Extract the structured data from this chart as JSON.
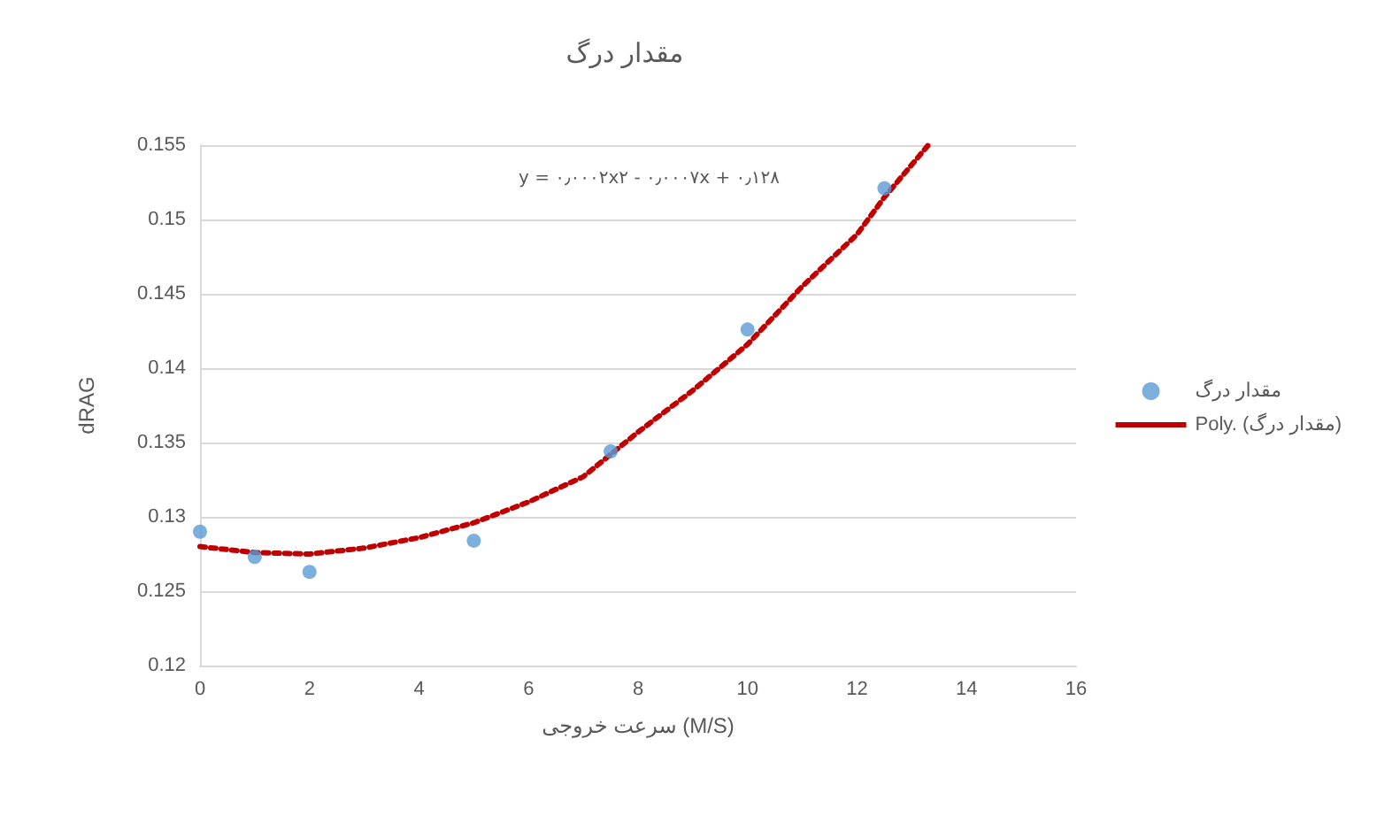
{
  "chart_data": {
    "type": "scatter",
    "title": "مقدار درگ",
    "xlabel": "سرعت خروجی (M/S)",
    "ylabel": "dRAG",
    "annotations": [
      "y = ۰٫۰۰۰۲x۲ - ۰٫۰۰۰۷x + ۰٫۱۲۸"
    ],
    "series": [
      {
        "name": "مقدار درگ",
        "color": "#5b9bd5",
        "marker": "circle",
        "x": [
          0,
          1,
          2,
          5,
          7.5,
          10,
          12.5
        ],
        "values": [
          0.129,
          0.1273,
          0.1263,
          0.1284,
          0.1344,
          0.1426,
          0.1521
        ]
      },
      {
        "name": "Poly. (مقدار درگ)",
        "type": "line",
        "color": "#c00000",
        "marker": "none",
        "line_style": "dotted",
        "x": [
          0,
          1,
          2,
          3,
          4,
          5,
          6,
          7,
          8,
          9,
          10,
          11,
          12,
          12.5,
          13.3
        ],
        "values": [
          0.128,
          0.1276,
          0.1275,
          0.1279,
          0.1286,
          0.1296,
          0.131,
          0.1327,
          0.1357,
          0.1385,
          0.1416,
          0.1455,
          0.149,
          0.1515,
          0.155
        ]
      }
    ],
    "xlim": [
      0,
      16
    ],
    "xticks": [
      0,
      2,
      4,
      6,
      8,
      10,
      12,
      14,
      16
    ],
    "ylim": [
      0.12,
      0.155
    ],
    "yticks": [
      0.12,
      0.125,
      0.13,
      0.135,
      0.14,
      0.145,
      0.15,
      0.155
    ],
    "grid": "y",
    "legend": "right"
  }
}
